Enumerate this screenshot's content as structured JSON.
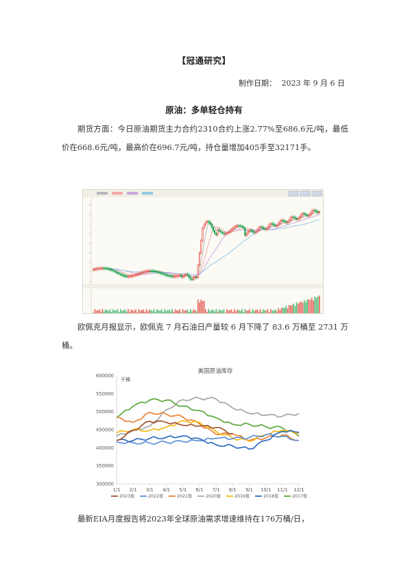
{
  "header": {
    "title": "【冠通研究】"
  },
  "meta": {
    "date_label": "制作日期：",
    "date_value": "2023 年 9 月 6 日"
  },
  "section": {
    "title": "原油：多单轻仓持有"
  },
  "paragraphs": {
    "p1": "期货方面：今日原油期货主力合约2310合约上涨2.77%至686.6元/吨，最低价在668.6元/吨，最高价在696.7元/吨，持仓量增加405手至32171手。",
    "p2": "欧佩克月报显示，欧佩克 7 月石油日产量较 6 月下降了 83.6 万桶至 2731 万桶。",
    "p3": "最新EIA月度报告将2023年全球原油需求增速维持在176万桶/日，"
  },
  "kline": {
    "colors": {
      "up": "#e0352b",
      "down": "#16a34a",
      "ma1": "#9aa0a6",
      "ma2": "#f28c8c",
      "ma3": "#b48ad8",
      "ma4": "#6fb7e6",
      "volume_up": "#e0352b",
      "volume_down": "#16a34a"
    }
  },
  "chart_data": {
    "type": "line",
    "title": "美国原油库存",
    "unit_label": "千桶",
    "categories": [
      "1/1",
      "2/1",
      "3/1",
      "4/1",
      "5/1",
      "6/1",
      "7/1",
      "8/1",
      "9/1",
      "10/1",
      "11/1",
      "12/1"
    ],
    "ylim": [
      300000,
      600000
    ],
    "yticks": [
      300000,
      350000,
      400000,
      450000,
      500000,
      550000,
      600000
    ],
    "grid": false,
    "legend_position": "bottom",
    "series": [
      {
        "name": "2023年",
        "color": "#a0522d",
        "values": [
          420000,
          448000,
          473000,
          470000,
          462000,
          460000,
          456000,
          439000,
          null,
          null,
          null,
          null
        ]
      },
      {
        "name": "2022年",
        "color": "#5b8fd6",
        "values": [
          416000,
          414000,
          413000,
          415000,
          417000,
          419000,
          426000,
          425000,
          428000,
          436000,
          432000,
          420000
        ]
      },
      {
        "name": "2021年",
        "color": "#ed8233",
        "values": [
          485000,
          470000,
          498000,
          493000,
          485000,
          466000,
          437000,
          438000,
          420000,
          427000,
          435000,
          420000
        ]
      },
      {
        "name": "2020年",
        "color": "#a6a6a6",
        "values": [
          432000,
          448000,
          460000,
          505000,
          533000,
          537000,
          535000,
          510000,
          495000,
          490000,
          487000,
          495000
        ]
      },
      {
        "name": "2019年",
        "color": "#f3b712",
        "values": [
          441000,
          450000,
          448000,
          457000,
          475000,
          470000,
          445000,
          427000,
          418000,
          436000,
          448000,
          440000
        ]
      },
      {
        "name": "2018年",
        "color": "#2e6bbf",
        "values": [
          420000,
          420000,
          426000,
          429000,
          433000,
          425000,
          408000,
          405000,
          396000,
          420000,
          445000,
          443000
        ]
      },
      {
        "name": "2017年",
        "color": "#58a83a",
        "values": [
          483000,
          515000,
          532000,
          532000,
          515000,
          503000,
          483000,
          465000,
          465000,
          458000,
          455000,
          432000
        ]
      }
    ]
  }
}
